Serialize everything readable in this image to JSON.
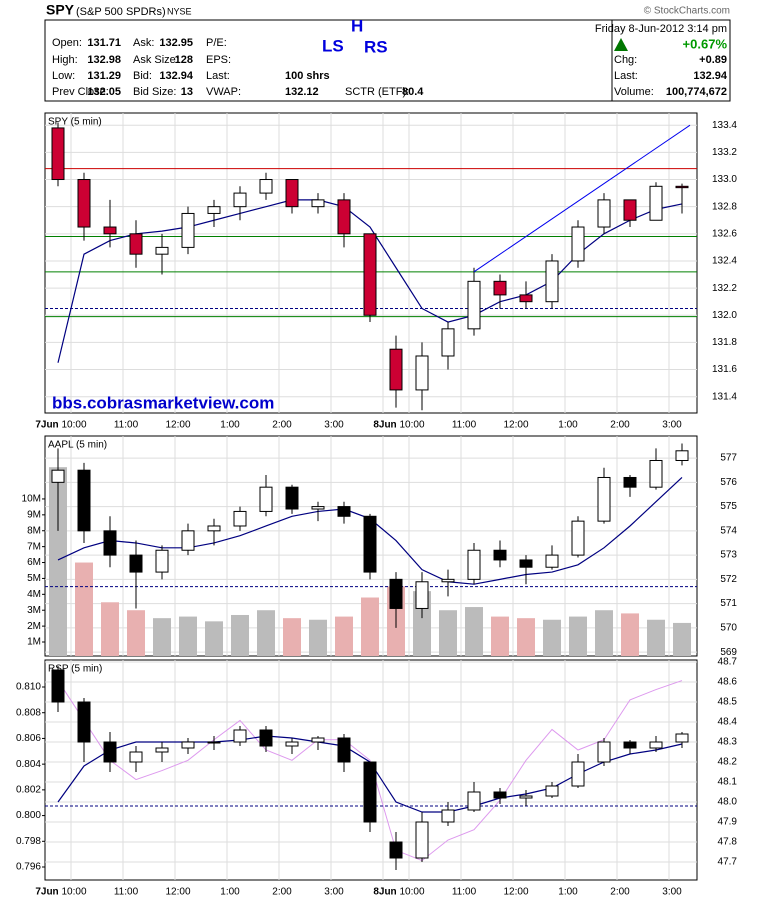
{
  "header": {
    "symbol": "SPY",
    "name": "(S&P 500 SPDRs)",
    "exchange": "NYSE",
    "copyright": "© StockCharts.com",
    "date": "Friday  8-Jun-2012  3:14 pm",
    "change_pct": "+0.67%",
    "quote": [
      [
        {
          "label": "Open:",
          "value": 131.71
        },
        {
          "label": "Ask:",
          "value": 132.95
        },
        {
          "label": "P/E:"
        }
      ],
      [
        {
          "label": "High:",
          "value": 132.98
        },
        {
          "label": "Ask Size:",
          "value": 128
        },
        {
          "label": "EPS:"
        }
      ],
      [
        {
          "label": "Low:",
          "value": 131.29
        },
        {
          "label": "Bid:",
          "value": 132.94
        },
        {
          "label": "Last:",
          "value": "100 shrs"
        }
      ],
      [
        {
          "label": "Prev Close:",
          "value": 132.05
        },
        {
          "label": "Bid Size:",
          "value": 13
        },
        {
          "label": "VWAP:",
          "value": 132.12
        },
        {
          "label": "SCTR (ETF):",
          "value": 80.4
        }
      ]
    ],
    "summary": [
      {
        "label": "Chg:",
        "value": "+0.89"
      },
      {
        "label": "Last:",
        "value": 132.94
      },
      {
        "label": "Volume:",
        "value": "100,774,672"
      }
    ],
    "annotations": [
      "LS",
      "H",
      "RS"
    ]
  },
  "chart_data": [
    {
      "type": "candlestick",
      "title": "SPY (5 min)",
      "annotation": "bbs.cobrasmarketview.com",
      "categories": [
        "7Jun",
        "10:00",
        null,
        "11:00",
        null,
        "12:00",
        null,
        "1:00",
        null,
        "2:00",
        null,
        "3:00",
        null,
        "8Jun",
        "10:00",
        null,
        "11:00",
        null,
        "12:00",
        null,
        "1:00",
        null,
        "2:00",
        null,
        "3:00"
      ],
      "open": [
        133.38,
        133.0,
        132.65,
        132.6,
        132.45,
        132.5,
        132.75,
        132.8,
        132.9,
        133.0,
        132.8,
        132.85,
        132.6,
        131.75,
        131.45,
        131.7,
        131.9,
        132.25,
        132.15,
        132.1,
        132.4,
        132.65,
        132.85,
        132.7,
        132.95
      ],
      "high": [
        133.42,
        133.05,
        132.85,
        132.7,
        132.6,
        132.8,
        132.85,
        132.95,
        133.05,
        133.0,
        132.9,
        132.9,
        132.6,
        131.85,
        131.8,
        131.95,
        132.35,
        132.3,
        132.25,
        132.45,
        132.7,
        132.9,
        132.85,
        132.98,
        132.97
      ],
      "low": [
        132.95,
        132.55,
        132.5,
        132.35,
        132.3,
        132.45,
        132.65,
        132.7,
        132.85,
        132.75,
        132.75,
        132.5,
        131.95,
        131.32,
        131.3,
        131.6,
        131.85,
        132.05,
        132.05,
        132.05,
        132.35,
        132.6,
        132.65,
        132.7,
        132.75
      ],
      "close": [
        133.0,
        132.65,
        132.6,
        132.45,
        132.5,
        132.75,
        132.8,
        132.9,
        133.0,
        132.8,
        132.85,
        132.6,
        132.0,
        131.45,
        131.7,
        131.9,
        132.25,
        132.15,
        132.1,
        132.4,
        132.65,
        132.85,
        132.7,
        132.95,
        132.94
      ],
      "ma": [
        131.65,
        132.45,
        132.55,
        132.6,
        132.62,
        132.65,
        132.7,
        132.75,
        132.8,
        132.85,
        132.85,
        132.8,
        132.65,
        132.35,
        132.05,
        131.95,
        132.0,
        132.1,
        132.15,
        132.25,
        132.45,
        132.6,
        132.7,
        132.78,
        132.82
      ],
      "ma_color": "#000080",
      "up_color": "#ffffff",
      "down_color": "#cc0033",
      "levels": [
        {
          "value": 133.08,
          "color": "#cc0000"
        },
        {
          "value": 132.58,
          "color": "#008000"
        },
        {
          "value": 132.32,
          "color": "#008000"
        },
        {
          "value": 132.05,
          "color": "#000080",
          "dashed": true
        },
        {
          "value": 131.99,
          "color": "#008000"
        }
      ],
      "trendline": {
        "start_index": 16,
        "start_value": 132.32,
        "end_index": 24,
        "end_value": 133.4,
        "color": "#0000ee"
      },
      "ylim": [
        131.28,
        133.49
      ],
      "yticks": [
        131.4,
        131.6,
        131.8,
        {
          "value": 132,
          "label": "132.0"
        },
        132.2,
        132.4,
        132.6,
        132.8,
        {
          "value": 133,
          "label": "133.0"
        },
        133.2,
        133.4
      ],
      "grid": true
    },
    {
      "type": "candlestick",
      "title": "AAPL (5 min)",
      "open": [
        576.0,
        576.5,
        574.0,
        573.0,
        572.3,
        573.2,
        574.0,
        574.2,
        574.8,
        575.8,
        574.9,
        575.0,
        574.6,
        572.0,
        570.8,
        571.9,
        572.0,
        573.2,
        572.8,
        572.5,
        573.0,
        574.4,
        576.2,
        575.8,
        576.9
      ],
      "high": [
        577.4,
        576.8,
        574.6,
        573.6,
        573.4,
        574.3,
        574.5,
        575.0,
        576.3,
        575.9,
        575.2,
        575.2,
        574.7,
        572.3,
        572.3,
        572.4,
        573.5,
        573.6,
        573.0,
        573.4,
        574.6,
        576.6,
        576.3,
        577.4,
        577.6
      ],
      "low": [
        574.0,
        573.5,
        572.5,
        570.8,
        572.0,
        573.0,
        573.4,
        574.0,
        574.6,
        574.7,
        574.4,
        574.3,
        572.0,
        570.0,
        570.4,
        571.3,
        571.8,
        572.5,
        571.8,
        572.4,
        572.9,
        574.3,
        575.4,
        575.7,
        576.7
      ],
      "close": [
        576.5,
        574.0,
        573.0,
        572.3,
        573.2,
        574.0,
        574.2,
        574.8,
        575.8,
        574.9,
        575.0,
        574.6,
        572.3,
        570.8,
        571.9,
        572.0,
        573.2,
        572.8,
        572.5,
        573.0,
        574.4,
        576.2,
        575.8,
        576.9,
        577.3
      ],
      "ma": [
        572.8,
        573.3,
        573.6,
        573.5,
        573.3,
        573.3,
        573.5,
        573.8,
        574.2,
        574.6,
        574.8,
        574.9,
        574.5,
        573.6,
        572.4,
        571.9,
        571.8,
        572.0,
        572.2,
        572.3,
        572.6,
        573.3,
        574.2,
        575.2,
        576.2
      ],
      "ma_color": "#000080",
      "up_color": "#ffffff",
      "down_color": "#000000",
      "volume": [
        12000000,
        6000000,
        3500000,
        3000000,
        2500000,
        2600000,
        2300000,
        2700000,
        3000000,
        2500000,
        2400000,
        2600000,
        3800000,
        4500000,
        4200000,
        3000000,
        3200000,
        2600000,
        2500000,
        2400000,
        2600000,
        3000000,
        2800000,
        2400000,
        2200000
      ],
      "volume_up_color": "#bbbbbb",
      "volume_down_color": "#e8b0b0",
      "volume_lim": [
        120000,
        13960000
      ],
      "volume_ticks": [
        {
          "value": 1000000,
          "label": "1M"
        },
        {
          "value": 2000000,
          "label": "2M"
        },
        {
          "value": 3000000,
          "label": "3M"
        },
        {
          "value": 4000000,
          "label": "4M"
        },
        {
          "value": 5000000,
          "label": "5M"
        },
        {
          "value": 6000000,
          "label": "6M"
        },
        {
          "value": 7000000,
          "label": "7M"
        },
        {
          "value": 8000000,
          "label": "8M"
        },
        {
          "value": 9000000,
          "label": "9M"
        },
        {
          "value": 10000000,
          "label": "10M"
        }
      ],
      "levels": [
        {
          "value": 571.7,
          "color": "#000080",
          "dashed": true
        }
      ],
      "ylim": [
        568.84,
        577.91
      ],
      "yticks": [
        569,
        570,
        571,
        572,
        573,
        574,
        575,
        576,
        577
      ],
      "grid": true
    },
    {
      "type": "candlestick",
      "title": "RSP (5 min)",
      "categories": [
        "7Jun",
        "10:00",
        null,
        "11:00",
        null,
        "12:00",
        null,
        "1:00",
        null,
        "2:00",
        null,
        "3:00",
        null,
        "8Jun",
        "10:00",
        null,
        "11:00",
        null,
        "12:00",
        null,
        "1:00",
        null,
        "2:00",
        null,
        "3:00"
      ],
      "open": [
        48.66,
        48.5,
        48.3,
        48.2,
        48.25,
        48.27,
        48.3,
        48.3,
        48.36,
        48.28,
        48.3,
        48.32,
        48.2,
        47.8,
        47.72,
        47.9,
        47.96,
        48.05,
        48.02,
        48.03,
        48.08,
        48.2,
        48.3,
        48.27,
        48.3
      ],
      "high": [
        48.68,
        48.52,
        48.35,
        48.28,
        48.3,
        48.32,
        48.33,
        48.38,
        48.38,
        48.32,
        48.33,
        48.34,
        48.2,
        47.85,
        47.95,
        48.0,
        48.1,
        48.07,
        48.06,
        48.1,
        48.24,
        48.32,
        48.31,
        48.33,
        48.35
      ],
      "low": [
        48.45,
        48.2,
        48.15,
        48.15,
        48.2,
        48.24,
        48.26,
        48.28,
        48.25,
        48.24,
        48.26,
        48.15,
        47.85,
        47.66,
        47.7,
        47.88,
        47.95,
        47.99,
        47.98,
        48.02,
        48.07,
        48.18,
        48.24,
        48.25,
        48.27
      ],
      "close": [
        48.5,
        48.3,
        48.2,
        48.25,
        48.27,
        48.3,
        48.3,
        48.36,
        48.28,
        48.3,
        48.32,
        48.2,
        47.9,
        47.72,
        47.9,
        47.96,
        48.05,
        48.02,
        48.03,
        48.08,
        48.2,
        48.3,
        48.27,
        48.3,
        48.34
      ],
      "ma": [
        48.0,
        48.18,
        48.26,
        48.3,
        48.3,
        48.3,
        48.3,
        48.31,
        48.33,
        48.32,
        48.3,
        48.28,
        48.2,
        48.0,
        47.95,
        47.95,
        47.98,
        48.02,
        48.04,
        48.07,
        48.14,
        48.2,
        48.24,
        48.26,
        48.29
      ],
      "ma_color": "#000080",
      "up_color": "#ffffff",
      "down_color": "#000000",
      "series": [
        {
          "color": "#dd99ee",
          "axis": "y2",
          "values": [
            0.8105,
            0.8074,
            0.8043,
            0.8028,
            0.8035,
            0.8043,
            0.8059,
            0.8074,
            0.8051,
            0.8043,
            0.8059,
            0.8059,
            0.8043,
            0.7973,
            0.7965,
            0.7981,
            0.7989,
            0.8012,
            0.8043,
            0.8067,
            0.8051,
            0.8059,
            0.809,
            0.8098,
            0.8105
          ]
        }
      ],
      "levels": [
        {
          "value": 47.98,
          "color": "#000080",
          "dashed": true
        }
      ],
      "ylim": [
        47.61,
        48.71
      ],
      "yticks": [
        47.7,
        47.8,
        47.9,
        {
          "value": 48,
          "label": "48.0"
        },
        48.1,
        48.2,
        48.3,
        48.4,
        48.5,
        48.6,
        48.7
      ],
      "y2lim": [
        0.79499,
        0.8121
      ],
      "y2ticks": [
        0.796,
        0.798,
        {
          "value": 0.8,
          "label": "0.800"
        },
        0.802,
        0.804,
        0.806,
        0.808,
        {
          "value": 0.81,
          "label": "0.810"
        }
      ],
      "grid": true
    }
  ]
}
